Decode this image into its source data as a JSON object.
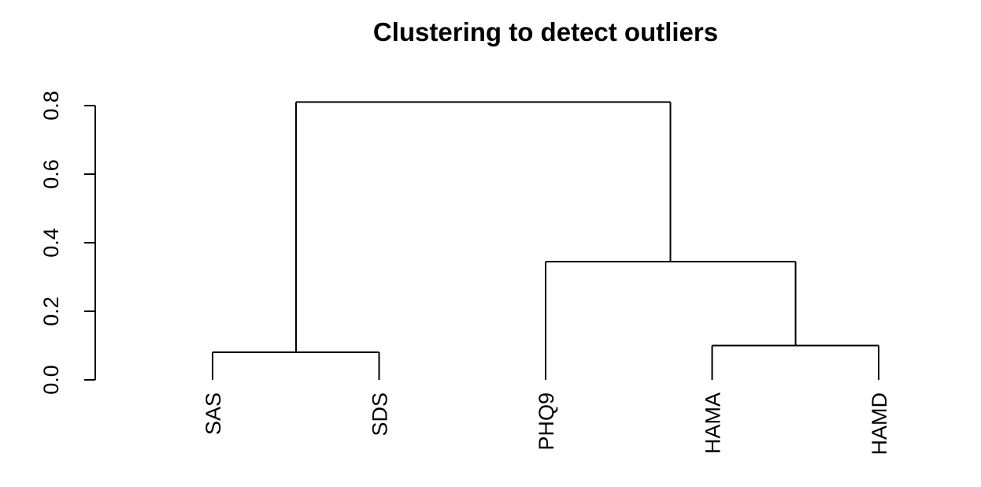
{
  "chart_data": {
    "type": "dendrogram",
    "title": "Clustering to detect outliers",
    "xlabel": "",
    "ylabel": "",
    "ylim": [
      0,
      0.8
    ],
    "yticks": [
      0.0,
      0.2,
      0.4,
      0.6,
      0.8
    ],
    "ytick_labels": [
      "0.0",
      "0.2",
      "0.4",
      "0.6",
      "0.8"
    ],
    "grid": false,
    "leaves": [
      "SAS",
      "SDS",
      "PHQ9",
      "HAMA",
      "HAMD"
    ],
    "merges": [
      {
        "left": "SAS",
        "right": "SDS",
        "height": 0.08
      },
      {
        "left": "HAMA",
        "right": "HAMD",
        "height": 0.1
      },
      {
        "left": "PHQ9",
        "right": [
          "HAMA",
          "HAMD"
        ],
        "height": 0.345
      },
      {
        "left": [
          "SAS",
          "SDS"
        ],
        "right": [
          "PHQ9",
          [
            "HAMA",
            "HAMD"
          ]
        ],
        "height": 0.81
      }
    ]
  }
}
